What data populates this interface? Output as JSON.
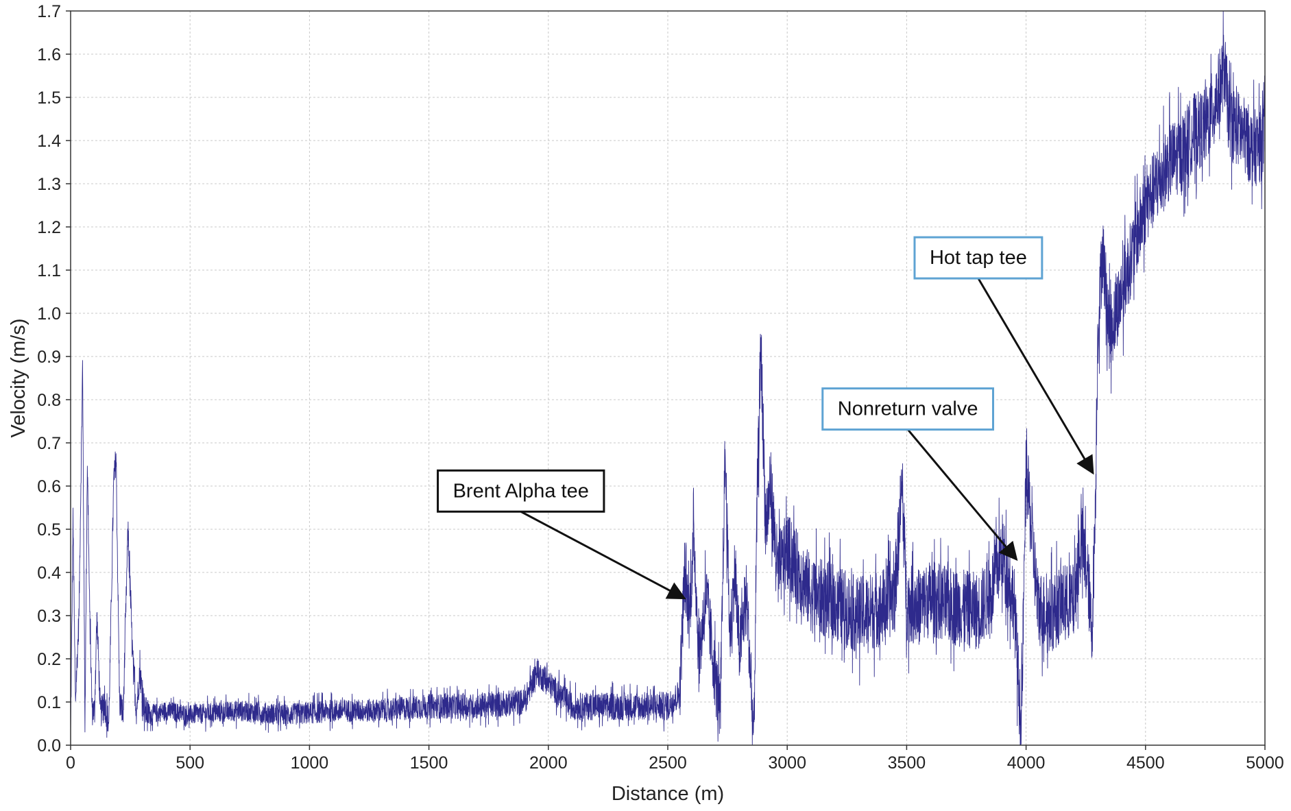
{
  "chart_data": {
    "type": "line",
    "title": "",
    "xlabel": "Distance (m)",
    "ylabel": "Velocity (m/s)",
    "xlim": [
      0,
      5000
    ],
    "ylim": [
      0,
      1.7
    ],
    "x_ticks": [
      0,
      500,
      1000,
      1500,
      2000,
      2500,
      3000,
      3500,
      4000,
      4500,
      5000
    ],
    "x_tick_labels": [
      "0",
      "500",
      "1000",
      "1500",
      "2000",
      "2500",
      "3000",
      "3500",
      "4000",
      "4500",
      "5000"
    ],
    "y_ticks": [
      0,
      0.1,
      0.2,
      0.3,
      0.4,
      0.5,
      0.6,
      0.7,
      0.8,
      0.9,
      1.0,
      1.1,
      1.2,
      1.3,
      1.4,
      1.5,
      1.6,
      1.7
    ],
    "y_tick_labels": [
      "0.0",
      "0.1",
      "0.2",
      "0.3",
      "0.4",
      "0.5",
      "0.6",
      "0.7",
      "0.8",
      "0.9",
      "1.0",
      "1.1",
      "1.2",
      "1.3",
      "1.4",
      "1.5",
      "1.6",
      "1.7"
    ],
    "grid": true,
    "series": [
      {
        "color": "#2e2a8c",
        "x": [
          0,
          10,
          20,
          35,
          50,
          60,
          70,
          80,
          90,
          100,
          110,
          125,
          140,
          160,
          180,
          190,
          205,
          220,
          240,
          260,
          275,
          290,
          310,
          330,
          400,
          500,
          700,
          900,
          1100,
          1300,
          1500,
          1700,
          1900,
          1950,
          2100,
          2300,
          2500,
          2550,
          2570,
          2590,
          2610,
          2630,
          2660,
          2700,
          2720,
          2740,
          2760,
          2780,
          2800,
          2830,
          2860,
          2875,
          2890,
          2910,
          2930,
          2960,
          3000,
          3100,
          3200,
          3300,
          3400,
          3450,
          3480,
          3500,
          3550,
          3600,
          3700,
          3800,
          3850,
          3900,
          3950,
          3980,
          4000,
          4050,
          4100,
          4150,
          4200,
          4230,
          4260,
          4275,
          4290,
          4300,
          4320,
          4350,
          4400,
          4450,
          4500,
          4550,
          4600,
          4650,
          4700,
          4750,
          4800,
          4830,
          4850,
          4900,
          4950,
          5000
        ],
        "y": [
          0.02,
          0.52,
          0.1,
          0.3,
          0.88,
          0.05,
          0.66,
          0.3,
          0.08,
          0.08,
          0.3,
          0.07,
          0.1,
          0.05,
          0.6,
          0.67,
          0.1,
          0.07,
          0.5,
          0.2,
          0.08,
          0.17,
          0.08,
          0.07,
          0.08,
          0.07,
          0.08,
          0.07,
          0.08,
          0.08,
          0.09,
          0.09,
          0.1,
          0.17,
          0.09,
          0.09,
          0.09,
          0.12,
          0.4,
          0.3,
          0.48,
          0.2,
          0.35,
          0.15,
          0.08,
          0.68,
          0.25,
          0.4,
          0.22,
          0.35,
          0.01,
          0.6,
          0.92,
          0.5,
          0.6,
          0.4,
          0.45,
          0.35,
          0.33,
          0.3,
          0.32,
          0.35,
          0.6,
          0.33,
          0.32,
          0.34,
          0.32,
          0.31,
          0.35,
          0.45,
          0.33,
          0.03,
          0.64,
          0.32,
          0.3,
          0.33,
          0.33,
          0.48,
          0.38,
          0.25,
          0.55,
          0.95,
          1.15,
          0.95,
          1.05,
          1.15,
          1.25,
          1.3,
          1.35,
          1.37,
          1.42,
          1.43,
          1.5,
          1.57,
          1.45,
          1.42,
          1.38,
          1.4
        ]
      }
    ],
    "annotations": [
      {
        "text": "Brent Alpha tee",
        "arrow_to": [
          2570,
          0.34
        ],
        "box_center": [
          1885,
          0.59
        ],
        "box_color": "#111111"
      },
      {
        "text": "Nonreturn valve",
        "arrow_to": [
          3960,
          0.43
        ],
        "box_center": [
          3505,
          0.78
        ],
        "box_color": "#5ea3d3"
      },
      {
        "text": "Hot tap tee",
        "arrow_to": [
          4280,
          0.63
        ],
        "box_center": [
          3800,
          1.13
        ],
        "box_color": "#5ea3d3"
      }
    ]
  }
}
